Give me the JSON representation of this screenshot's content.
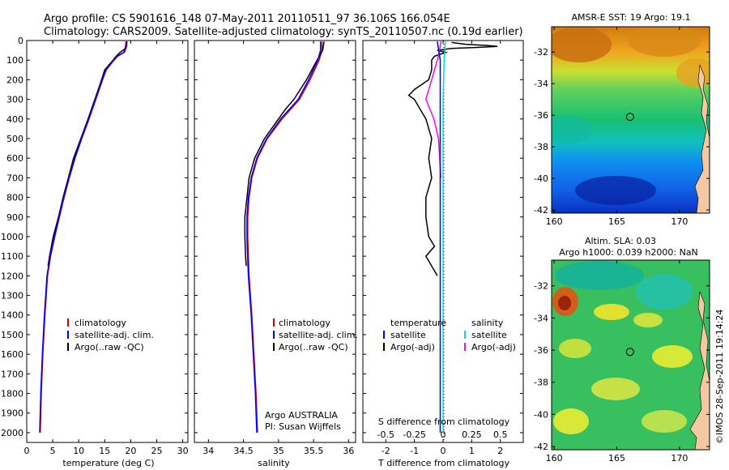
{
  "title": {
    "line1": "Argo profile: CS 5901616_148 07-May-2011 20110511_97 36.106S 166.054E",
    "line2": "Climatology: CARS2009. Satellite-adjusted climatology: synTS_20110507.nc (0.19d earlier)"
  },
  "colors": {
    "climatology": "#d40000",
    "satellite": "#0000ff",
    "argo": "#000000",
    "sat_salinity": "#00e0e0",
    "argo_salinity": "#ff00ff"
  },
  "chart_data": [
    {
      "type": "line",
      "panel": "temperature",
      "xlabel": "temperature (deg C)",
      "xlim": [
        0,
        31
      ],
      "ylim": [
        2050,
        0
      ],
      "xticks": [
        "0",
        "5",
        "10",
        "15",
        "20",
        "25",
        "30"
      ],
      "yticks": [
        "0",
        "100",
        "200",
        "300",
        "400",
        "500",
        "600",
        "700",
        "800",
        "900",
        "1000",
        "1100",
        "1200",
        "1300",
        "1400",
        "1500",
        "1600",
        "1700",
        "1800",
        "1900",
        "2000"
      ],
      "legend": [
        "climatology",
        "satellite-adj. clim.",
        "Argo(..raw -QC)"
      ],
      "series": [
        {
          "name": "climatology",
          "depth": [
            5,
            30,
            60,
            80,
            100,
            150,
            200,
            300,
            400,
            500,
            600,
            700,
            800,
            900,
            1000,
            1100,
            1200,
            1400,
            1600,
            1800,
            2000
          ],
          "values": [
            19.3,
            19.2,
            18.8,
            17.5,
            16.8,
            15.3,
            14.6,
            13.3,
            12.0,
            10.6,
            9.3,
            8.2,
            7.2,
            6.3,
            5.4,
            4.6,
            4.0,
            3.5,
            3.1,
            2.8,
            2.6
          ]
        },
        {
          "name": "satellite-adj. clim.",
          "depth": [
            5,
            30,
            60,
            80,
            100,
            150,
            200,
            300,
            400,
            500,
            600,
            700,
            800,
            900,
            1000,
            1100,
            1200,
            1400,
            1600,
            1800,
            2000
          ],
          "values": [
            19.1,
            19.0,
            18.7,
            17.4,
            16.7,
            15.2,
            14.5,
            13.2,
            11.9,
            10.5,
            9.2,
            8.1,
            7.1,
            6.2,
            5.3,
            4.5,
            3.9,
            3.4,
            3.0,
            2.7,
            2.5
          ]
        },
        {
          "name": "Argo(..raw -QC)",
          "depth": [
            5,
            20,
            40,
            60,
            80,
            100,
            150,
            200,
            300,
            400,
            500,
            600,
            700,
            800,
            900,
            1000,
            1100,
            1150
          ],
          "values": [
            19.2,
            19.1,
            19.0,
            18.0,
            17.2,
            16.6,
            15.0,
            14.4,
            13.1,
            11.8,
            10.4,
            9.0,
            8.0,
            7.0,
            6.1,
            5.1,
            4.4,
            4.1
          ]
        }
      ]
    },
    {
      "type": "line",
      "panel": "salinity",
      "xlabel": "salinity",
      "xlim": [
        33.8,
        36.1
      ],
      "ylim": [
        2050,
        0
      ],
      "xticks": [
        "34",
        "34.5",
        "35",
        "35.5",
        "36"
      ],
      "legend": [
        "climatology",
        "satellite-adj. clim.",
        "Argo(..raw -QC)"
      ],
      "annotation": [
        "Argo AUSTRALIA",
        "PI: Susan Wijffels"
      ],
      "series": [
        {
          "name": "climatology",
          "depth": [
            5,
            50,
            100,
            200,
            300,
            400,
            500,
            600,
            700,
            800,
            900,
            1000,
            1200,
            1400,
            1600,
            1800,
            2000
          ],
          "values": [
            35.62,
            35.62,
            35.58,
            35.45,
            35.3,
            35.05,
            34.84,
            34.7,
            34.62,
            34.58,
            34.56,
            34.56,
            34.58,
            34.62,
            34.65,
            34.68,
            34.7
          ]
        },
        {
          "name": "satellite-adj. clim.",
          "depth": [
            5,
            50,
            100,
            200,
            300,
            400,
            500,
            600,
            700,
            800,
            900,
            1000,
            1200,
            1400,
            1600,
            1800,
            2000
          ],
          "values": [
            35.6,
            35.6,
            35.56,
            35.43,
            35.28,
            35.03,
            34.83,
            34.69,
            34.61,
            34.57,
            34.55,
            34.55,
            34.57,
            34.61,
            34.64,
            34.67,
            34.69
          ]
        },
        {
          "name": "Argo(..raw -QC)",
          "depth": [
            5,
            50,
            100,
            200,
            300,
            350,
            400,
            500,
            600,
            700,
            800,
            900,
            1000,
            1100,
            1150
          ],
          "values": [
            35.65,
            35.63,
            35.55,
            35.4,
            35.22,
            35.1,
            35.0,
            34.8,
            34.66,
            34.58,
            34.55,
            34.52,
            34.52,
            34.53,
            34.54
          ]
        }
      ]
    },
    {
      "type": "line",
      "panel": "difference",
      "xlabel": "T difference from climatology",
      "xlabel_top": "S difference from climatology",
      "xlim": [
        -2.8,
        2.8
      ],
      "ylim": [
        2050,
        0
      ],
      "xticks": [
        "-2",
        "-1",
        "0",
        "1",
        "2"
      ],
      "xticks_s": [
        "-0.5",
        "-0.25",
        "0",
        "0.25",
        "0.5"
      ],
      "legend_t": {
        "title": "temperature",
        "items": [
          "satellite",
          "Argo(-adj)"
        ]
      },
      "legend_s": {
        "title": "salinity",
        "items": [
          "satellite",
          "Argo(-adj)"
        ]
      },
      "series": [
        {
          "name": "temperature satellite",
          "depth": [
            5,
            100,
            300,
            600,
            1000,
            1500,
            2000
          ],
          "values": [
            -0.2,
            -0.1,
            -0.1,
            -0.1,
            -0.1,
            -0.1,
            -0.1
          ]
        },
        {
          "name": "temperature Argo(-adj)",
          "depth": [
            10,
            20,
            25,
            30,
            35,
            40,
            50,
            60,
            80,
            100,
            150,
            200,
            250,
            280,
            300,
            350,
            400,
            500,
            600,
            700,
            800,
            900,
            1000,
            1050,
            1100,
            1150,
            1200
          ],
          "values": [
            0.3,
            0.8,
            1.5,
            1.9,
            1.2,
            0.3,
            -0.2,
            0.1,
            -0.3,
            -0.4,
            -0.4,
            -0.5,
            -1.0,
            -1.2,
            -1.0,
            -0.8,
            -0.6,
            -0.4,
            -0.5,
            -0.4,
            -0.6,
            -0.6,
            -0.5,
            -0.3,
            -0.6,
            -0.4,
            -0.2
          ]
        },
        {
          "name": "salinity satellite",
          "depth": [
            5,
            100,
            300,
            600,
            1000,
            1500,
            2000
          ],
          "values": [
            0.02,
            0.01,
            0.0,
            0.0,
            0.0,
            0.0,
            0.0
          ]
        },
        {
          "name": "salinity Argo(-adj)",
          "depth": [
            5,
            50,
            100,
            200,
            300,
            400,
            500,
            600,
            700
          ],
          "values": [
            -0.02,
            -0.03,
            -0.05,
            -0.1,
            -0.15,
            -0.08,
            -0.04,
            -0.03,
            -0.02
          ]
        }
      ]
    },
    {
      "type": "heatmap",
      "panel": "sst-map",
      "title": "AMSR-E SST: 19 Argo: 19.1",
      "xticks": [
        "160",
        "165",
        "170"
      ],
      "yticks": [
        "-32",
        "-34",
        "-36",
        "-38",
        "-40",
        "-42"
      ],
      "xlim": [
        159.8,
        172.4
      ],
      "ylim": [
        -42.2,
        -30.4
      ],
      "argo_position": {
        "lon": 166.054,
        "lat": -36.106
      }
    },
    {
      "type": "heatmap",
      "panel": "sla-map",
      "title": "Altim. SLA: 0.03",
      "subtitle": "Argo h1000: 0.039 h2000: NaN",
      "xticks": [
        "160",
        "165",
        "170"
      ],
      "yticks": [
        "-32",
        "-34",
        "-36",
        "-38",
        "-40",
        "-42"
      ],
      "xlim": [
        159.8,
        172.4
      ],
      "ylim": [
        -42.2,
        -30.4
      ],
      "argo_position": {
        "lon": 166.054,
        "lat": -36.106
      }
    }
  ],
  "credit": "©IMOS 28-Sep-2011 19:14:24"
}
